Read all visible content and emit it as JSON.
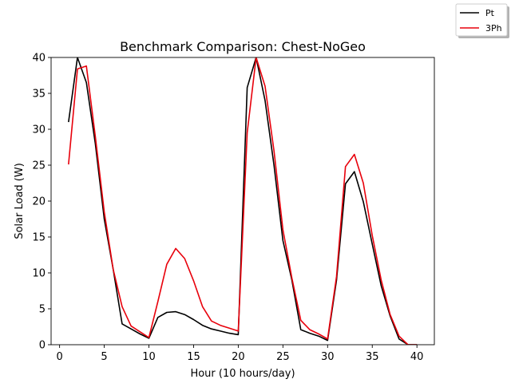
{
  "chart_data": {
    "type": "line",
    "title": "Benchmark Comparison: Chest-NoGeo",
    "xlabel": "Hour (10 hours/day)",
    "ylabel": "Solar Load (W)",
    "xlim": [
      -0.95,
      41.95
    ],
    "ylim": [
      0,
      40
    ],
    "xticks": [
      0,
      5,
      10,
      15,
      20,
      25,
      30,
      35,
      40
    ],
    "yticks": [
      0,
      5,
      10,
      15,
      20,
      25,
      30,
      35,
      40
    ],
    "grid": false,
    "legend_position": "top-right outside",
    "x": [
      1,
      2,
      3,
      4,
      5,
      6,
      7,
      8,
      9,
      10,
      11,
      12,
      13,
      14,
      15,
      16,
      17,
      18,
      19,
      20,
      21,
      22,
      23,
      24,
      25,
      26,
      27,
      28,
      29,
      30,
      31,
      32,
      33,
      34,
      35,
      36,
      37,
      38,
      39,
      40
    ],
    "series": [
      {
        "name": "Pt",
        "color": "#000000",
        "values": [
          31,
          40,
          36.5,
          28,
          17.5,
          10.5,
          2.9,
          2.2,
          1.5,
          0.9,
          3.8,
          4.5,
          4.6,
          4.2,
          3.5,
          2.7,
          2.2,
          1.9,
          1.6,
          1.4,
          35.8,
          40,
          34,
          25,
          14.5,
          9,
          2.1,
          1.6,
          1.2,
          0.6,
          9,
          22.4,
          24.1,
          19.9,
          14,
          8.2,
          4,
          0.8,
          0,
          0
        ]
      },
      {
        "name": "3Ph",
        "color": "#e8000b",
        "values": [
          25.1,
          38.4,
          38.8,
          29,
          18.5,
          10.5,
          5.3,
          2.6,
          1.8,
          1,
          6,
          11.2,
          13.4,
          12,
          8.9,
          5.3,
          3.3,
          2.7,
          2.3,
          1.9,
          29.5,
          40,
          36,
          27,
          16,
          9.3,
          3.4,
          2.1,
          1.5,
          0.8,
          9.5,
          24.8,
          26.5,
          22.5,
          15.2,
          9,
          4.2,
          1.2,
          0,
          0
        ]
      }
    ]
  }
}
